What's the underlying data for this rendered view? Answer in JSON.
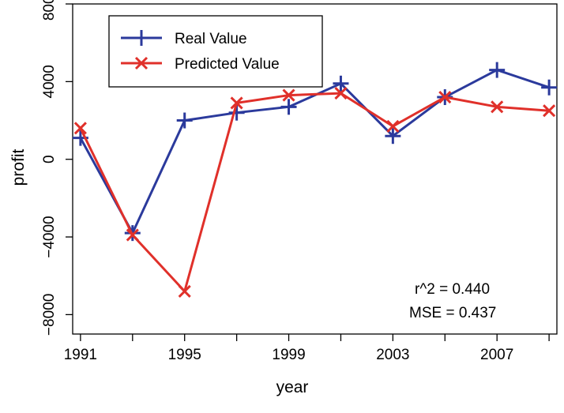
{
  "chart_data": {
    "type": "line",
    "xlabel": "year",
    "ylabel": "profit",
    "xlim": [
      1990.7,
      2009.3
    ],
    "ylim": [
      -9000,
      8000
    ],
    "x_ticks": [
      1991,
      1993,
      1995,
      1997,
      1999,
      2001,
      2003,
      2005,
      2007,
      2009
    ],
    "x_tick_labels": [
      "1991",
      "1995",
      "1999",
      "2003",
      "2007"
    ],
    "x_tick_label_values": [
      1991,
      1995,
      1999,
      2003,
      2007
    ],
    "y_ticks": [
      -8000,
      -4000,
      0,
      4000,
      8000
    ],
    "y_tick_labels": [
      "−8000",
      "−4000",
      "0",
      "4000",
      "8000"
    ],
    "x": [
      1991,
      1993,
      1995,
      1997,
      1999,
      2001,
      2003,
      2005,
      2007,
      2009
    ],
    "series": [
      {
        "name": "Real Value",
        "color": "#2b3a9c",
        "marker": "plus",
        "values": [
          1100,
          -3800,
          2000,
          2400,
          2700,
          3900,
          1200,
          3200,
          4600,
          3700
        ]
      },
      {
        "name": "Predicted Value",
        "color": "#e0302a",
        "marker": "cross",
        "values": [
          1600,
          -3900,
          -6800,
          2900,
          3300,
          3400,
          1700,
          3200,
          2700,
          2500
        ]
      }
    ],
    "legend": {
      "position": "top-left"
    },
    "annotations": [
      "r^2 = 0.440",
      "MSE = 0.437"
    ],
    "grid": false
  }
}
